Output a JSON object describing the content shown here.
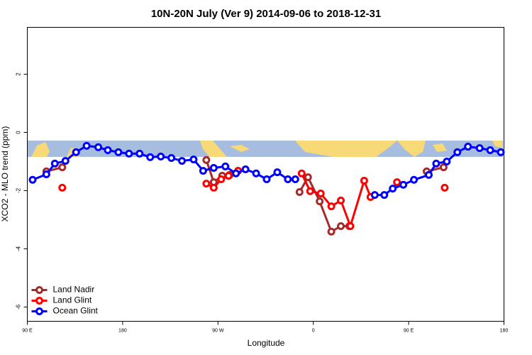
{
  "chart_data": {
    "type": "line",
    "title": "10N-20N July (Ver 9)   2014-09-06 to 2018-12-31",
    "x_label": "Longitude",
    "y_label": "XCO2 - MLO trend (ppm)",
    "xlim": [
      90,
      540
    ],
    "xticks": [
      {
        "value": 90,
        "label": "90 E"
      },
      180,
      {
        "value": 270,
        "label": "90 W"
      },
      {
        "value": 360,
        "label": "0"
      },
      {
        "value": 450,
        "label": "90 E"
      },
      {
        "value": 540,
        "label": "180"
      }
    ],
    "ylim": [
      -6.49,
      3.61
    ],
    "yticks": [
      -6,
      -4,
      -2,
      0,
      2
    ],
    "legend": "bottom-left",
    "series": [
      {
        "name": "Land Nadir",
        "color": "#a52a2a",
        "x": [
          108,
          123,
          190,
          259,
          266,
          274,
          281,
          289,
          320,
          347,
          355,
          366,
          377,
          386,
          394,
          430,
          467,
          483
        ],
        "values": [
          -1.34,
          -1.2,
          null,
          -0.95,
          -1.71,
          -1.49,
          -1.46,
          -1.32,
          null,
          -2.05,
          -1.54,
          -2.37,
          -3.41,
          -3.22,
          -3.22,
          null,
          -1.34,
          -1.2
        ]
      },
      {
        "name": "Land Glint",
        "color": "#ff0000",
        "x": [
          123,
          190,
          259,
          266,
          273,
          280,
          289,
          320,
          349,
          357,
          367,
          377,
          386,
          395,
          408,
          414,
          425,
          439,
          460,
          484
        ],
        "values": [
          -1.9,
          null,
          -1.76,
          -1.9,
          -1.61,
          -1.49,
          -1.32,
          null,
          -1.41,
          -2.02,
          -2.1,
          -2.54,
          -2.34,
          -3.22,
          -1.66,
          -2.22,
          null,
          -1.71,
          null,
          -1.9
        ]
      },
      {
        "name": "Ocean Glint",
        "color": "#0000ff",
        "x": [
          95,
          108,
          116,
          126,
          136,
          146,
          157,
          166,
          176,
          186,
          196,
          206,
          216,
          226,
          236,
          247,
          256,
          266,
          277,
          287,
          296,
          306,
          316,
          326,
          336,
          343,
          380,
          418,
          427,
          435,
          445,
          455,
          469,
          476,
          486,
          496,
          506,
          517,
          527,
          537
        ],
        "values": [
          -1.63,
          -1.44,
          -1.07,
          -0.98,
          -0.68,
          -0.46,
          -0.51,
          -0.61,
          -0.68,
          -0.73,
          -0.73,
          -0.85,
          -0.83,
          -0.88,
          -0.98,
          -0.93,
          -1.32,
          -1.22,
          -1.17,
          -1.41,
          -1.27,
          -1.41,
          -1.61,
          -1.37,
          -1.61,
          -1.61,
          null,
          -2.15,
          -2.15,
          -1.93,
          -1.8,
          -1.63,
          -1.46,
          -1.07,
          -1.0,
          -0.68,
          -0.49,
          -0.54,
          -0.61,
          -0.68
        ]
      }
    ]
  }
}
